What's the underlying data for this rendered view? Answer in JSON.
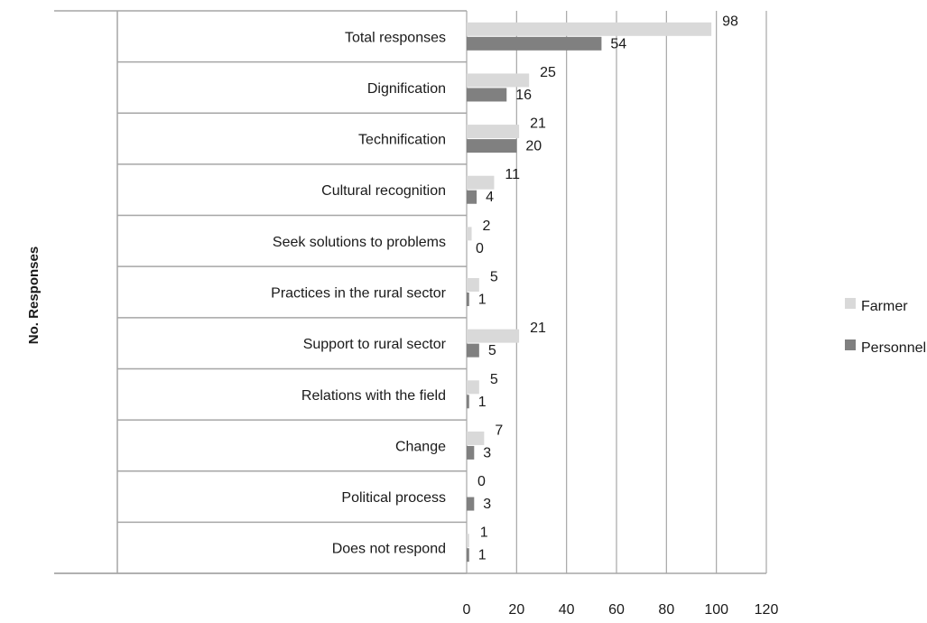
{
  "chart_data": {
    "type": "bar",
    "orientation": "horizontal",
    "title": "",
    "xlabel": "",
    "ylabel": "No. Responses",
    "categories": [
      "Total responses",
      "Dignification",
      "Technification",
      "Cultural recognition",
      "Seek solutions to problems",
      "Practices in the rural sector",
      "Support to rural sector",
      "Relations with the field",
      "Change",
      "Political process",
      "Does not respond"
    ],
    "series": [
      {
        "name": "Farmer",
        "color": "#d9d9d9",
        "values": [
          98,
          25,
          21,
          11,
          2,
          5,
          21,
          5,
          7,
          0,
          1
        ]
      },
      {
        "name": "Personnel",
        "color": "#808080",
        "values": [
          54,
          16,
          20,
          4,
          0,
          1,
          5,
          1,
          3,
          3,
          1
        ]
      }
    ],
    "xlim": [
      0,
      120
    ],
    "xticks": [
      "0",
      "20",
      "40",
      "60",
      "80",
      "100",
      "120"
    ],
    "grid": true,
    "legend_position": "right"
  }
}
